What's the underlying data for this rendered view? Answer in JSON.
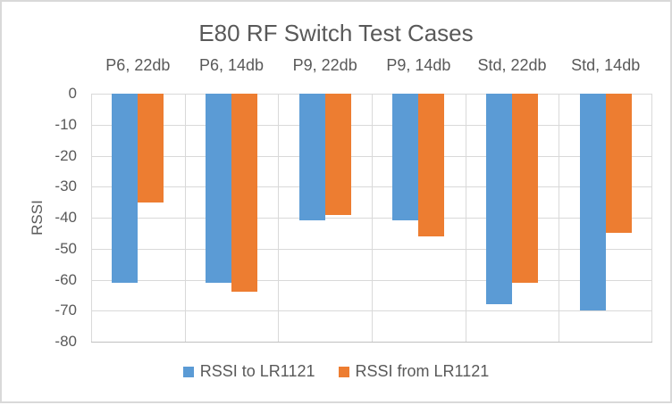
{
  "frame": {
    "background": "#FFFFFF",
    "border_color": "#D9D9D9"
  },
  "chart_data": {
    "type": "bar",
    "title": "E80 RF Switch Test Cases",
    "ylabel": "RSSI",
    "xlabel": "",
    "categories": [
      "P6, 22db",
      "P6, 14db",
      "P9, 22db",
      "P9, 14db",
      "Std, 22db",
      "Std, 14db"
    ],
    "series": [
      {
        "name": "RSSI to LR1121",
        "color": "#5B9BD5",
        "values": [
          -61,
          -61,
          -41,
          -41,
          -68,
          -70
        ]
      },
      {
        "name": "RSSI from LR1121",
        "color": "#ED7D31",
        "values": [
          -35,
          -64,
          -39,
          -46,
          -61,
          -45
        ]
      }
    ],
    "ylim": [
      -80,
      0
    ],
    "yticks": [
      0,
      -10,
      -20,
      -30,
      -40,
      -50,
      -60,
      -70,
      -80
    ],
    "grid": true,
    "legend_position": "bottom",
    "category_labels_position": "top",
    "text_color": "#595959",
    "gridline_color": "#D9D9D9",
    "axisline_color": "#BFBFBF"
  }
}
